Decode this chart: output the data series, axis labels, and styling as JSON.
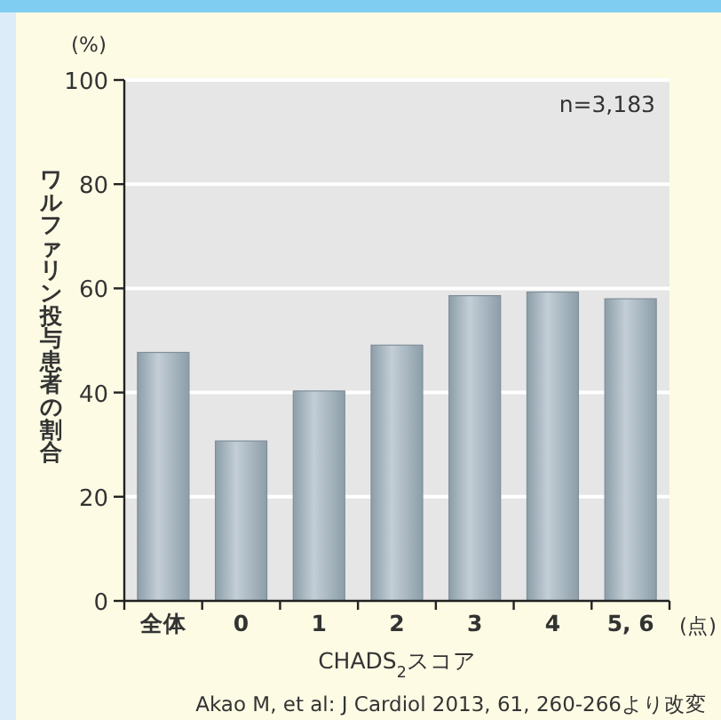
{
  "chart_data": {
    "type": "bar",
    "categories": [
      "全体",
      "0",
      "1",
      "2",
      "3",
      "4",
      "5, 6"
    ],
    "values": [
      47.7,
      30.7,
      40.3,
      49.1,
      58.6,
      59.3,
      58.0
    ],
    "color": "#8c9ea9",
    "ylabel": "ワルファリン投与患者の割合",
    "xlabel": "CHADS$_{2}$スコア",
    "ylim": [
      0,
      100
    ],
    "yticks": [
      0,
      20,
      40,
      60,
      80,
      100
    ],
    "grid": "y",
    "annotations": [
      "(%)",
      "(点)",
      "n=3,183",
      "Akao M, et al: J Cardiol 2013, 61, 260-266より改変"
    ]
  }
}
